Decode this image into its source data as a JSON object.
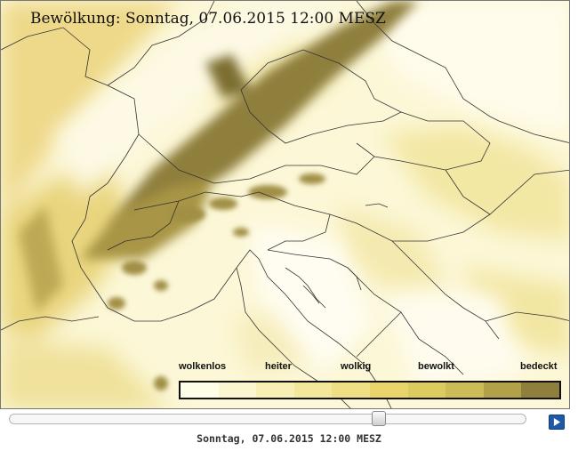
{
  "map": {
    "title": "Bewölkung: Sonntag, 07.06.2015 12:00  MESZ"
  },
  "legend": {
    "labels": [
      "wolkenlos",
      "heiter",
      "wolkig",
      "bewolkt",
      "bedeckt"
    ],
    "colors": [
      "#fefde8",
      "#fbf6cf",
      "#f7efb4",
      "#f3e79a",
      "#efde84",
      "#e9d56c",
      "#dccb5f",
      "#cdbb58",
      "#b3a14a",
      "#8f7f3c"
    ]
  },
  "time_slider": {
    "value_fraction": 0.72
  },
  "controls": {
    "play_icon": "play-icon"
  },
  "caption": {
    "text": "Sonntag, 07.06.2015 12:00 MESZ"
  }
}
